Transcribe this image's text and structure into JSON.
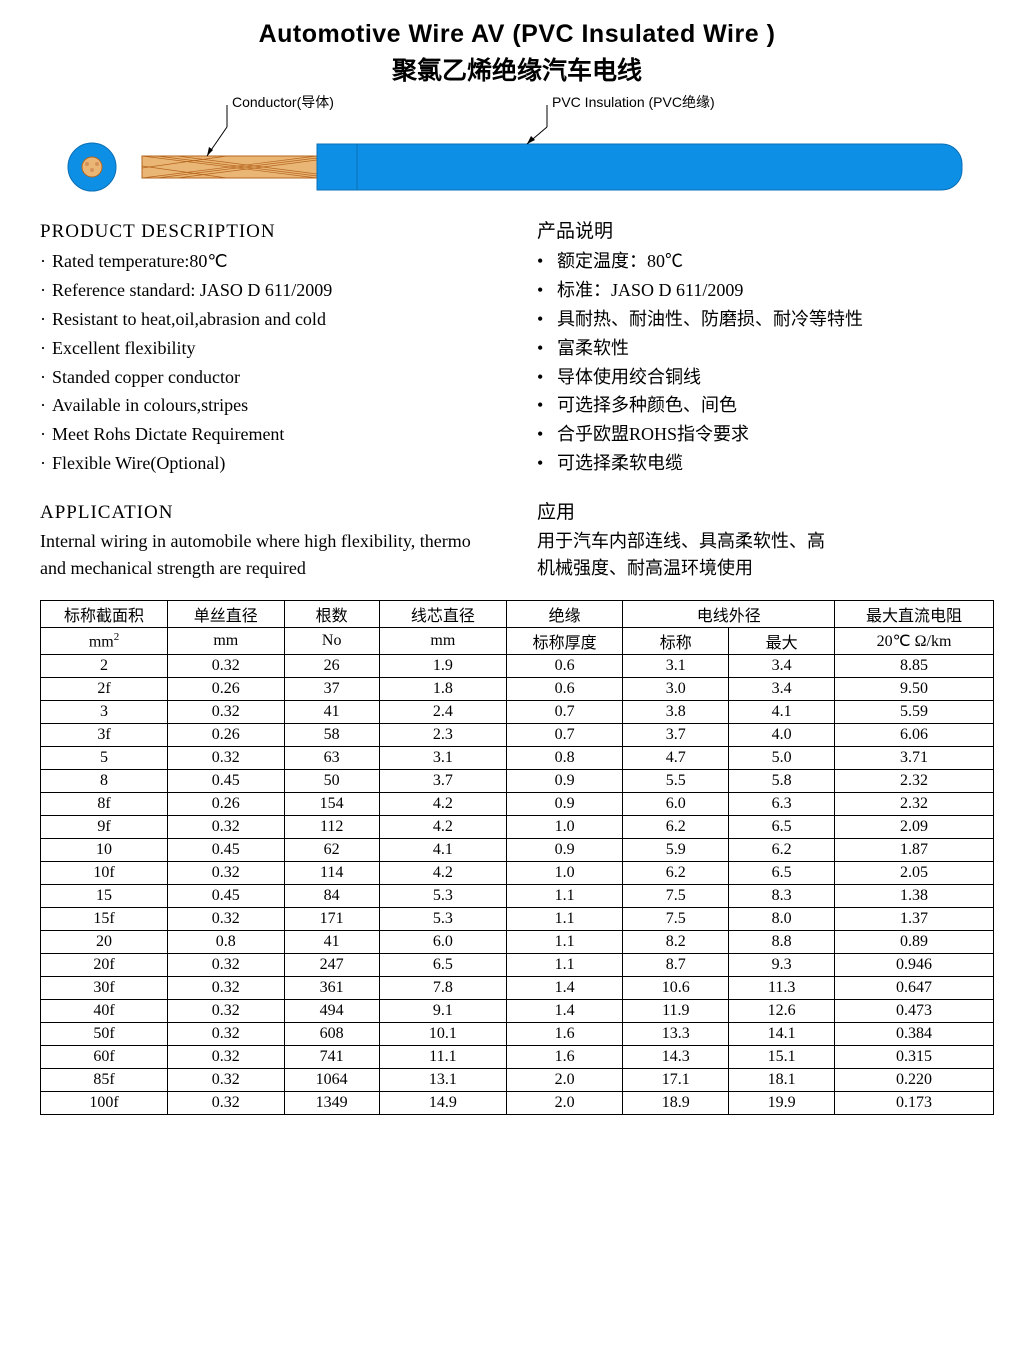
{
  "title_en": "Automotive Wire AV (PVC Insulated Wire )",
  "title_cn": "聚氯乙烯绝缘汽车电线",
  "diagram": {
    "label_conductor": "Conductor(导体)",
    "label_insulation": "PVC Insulation (PVC绝缘)",
    "insulation_color": "#0d8fe6",
    "conductor_color": "#eab676",
    "conductor_outline": "#b5651d"
  },
  "desc_head_en": "PRODUCT DESCRIPTION",
  "desc_head_cn": "产品说明",
  "desc_en": [
    "Rated temperature:80℃",
    "Reference standard: JASO D 611/2009",
    "Resistant to heat,oil,abrasion and cold",
    "Excellent flexibility",
    "Standed copper conductor",
    "Available in colours,stripes",
    "Meet Rohs Dictate Requirement",
    "Flexible Wire(Optional)"
  ],
  "desc_cn": [
    "额定温度：80℃",
    "标准：JASO D 611/2009",
    "具耐热、耐油性、防磨损、耐冷等特性",
    "富柔软性",
    "导体使用绞合铜线",
    "可选择多种颜色、间色",
    "合乎欧盟ROHS指令要求",
    "可选择柔软电缆"
  ],
  "app_head_en": "APPLICATION",
  "app_head_cn": "应用",
  "app_en": "Internal wiring in automobile where high flexibility, thermo and mechanical strength are required",
  "app_cn": "用于汽车内部连线、具高柔软性、高机械强度、耐高温环境使用",
  "table": {
    "h_area_a": "标称截面积",
    "h_area_b_pre": "mm",
    "h_area_b_sup": "2",
    "h_dia_a": "单丝直径",
    "h_dia_b": "mm",
    "h_num_a": "根数",
    "h_num_b": "No",
    "h_core_a": "线芯直径",
    "h_core_b": "mm",
    "h_ins_a": "绝缘",
    "h_ins_b": "标称厚度",
    "h_od": "电线外径",
    "h_od_nom": "标称",
    "h_od_max": "最大",
    "h_res_a": "最大直流电阻",
    "h_res_b": "20℃ Ω/km",
    "col_widths": [
      "12%",
      "11%",
      "9%",
      "12%",
      "11%",
      "10%",
      "10%",
      "15%"
    ],
    "rows": [
      [
        "2",
        "0.32",
        "26",
        "1.9",
        "0.6",
        "3.1",
        "3.4",
        "8.85"
      ],
      [
        "2f",
        "0.26",
        "37",
        "1.8",
        "0.6",
        "3.0",
        "3.4",
        "9.50"
      ],
      [
        "3",
        "0.32",
        "41",
        "2.4",
        "0.7",
        "3.8",
        "4.1",
        "5.59"
      ],
      [
        "3f",
        "0.26",
        "58",
        "2.3",
        "0.7",
        "3.7",
        "4.0",
        "6.06"
      ],
      [
        "5",
        "0.32",
        "63",
        "3.1",
        "0.8",
        "4.7",
        "5.0",
        "3.71"
      ],
      [
        "8",
        "0.45",
        "50",
        "3.7",
        "0.9",
        "5.5",
        "5.8",
        "2.32"
      ],
      [
        "8f",
        "0.26",
        "154",
        "4.2",
        "0.9",
        "6.0",
        "6.3",
        "2.32"
      ],
      [
        "9f",
        "0.32",
        "112",
        "4.2",
        "1.0",
        "6.2",
        "6.5",
        "2.09"
      ],
      [
        "10",
        "0.45",
        "62",
        "4.1",
        "0.9",
        "5.9",
        "6.2",
        "1.87"
      ],
      [
        "10f",
        "0.32",
        "114",
        "4.2",
        "1.0",
        "6.2",
        "6.5",
        "2.05"
      ],
      [
        "15",
        "0.45",
        "84",
        "5.3",
        "1.1",
        "7.5",
        "8.3",
        "1.38"
      ],
      [
        "15f",
        "0.32",
        "171",
        "5.3",
        "1.1",
        "7.5",
        "8.0",
        "1.37"
      ],
      [
        "20",
        "0.8",
        "41",
        "6.0",
        "1.1",
        "8.2",
        "8.8",
        "0.89"
      ],
      [
        "20f",
        "0.32",
        "247",
        "6.5",
        "1.1",
        "8.7",
        "9.3",
        "0.946"
      ],
      [
        "30f",
        "0.32",
        "361",
        "7.8",
        "1.4",
        "10.6",
        "11.3",
        "0.647"
      ],
      [
        "40f",
        "0.32",
        "494",
        "9.1",
        "1.4",
        "11.9",
        "12.6",
        "0.473"
      ],
      [
        "50f",
        "0.32",
        "608",
        "10.1",
        "1.6",
        "13.3",
        "14.1",
        "0.384"
      ],
      [
        "60f",
        "0.32",
        "741",
        "11.1",
        "1.6",
        "14.3",
        "15.1",
        "0.315"
      ],
      [
        "85f",
        "0.32",
        "1064",
        "13.1",
        "2.0",
        "17.1",
        "18.1",
        "0.220"
      ],
      [
        "100f",
        "0.32",
        "1349",
        "14.9",
        "2.0",
        "18.9",
        "19.9",
        "0.173"
      ]
    ]
  }
}
